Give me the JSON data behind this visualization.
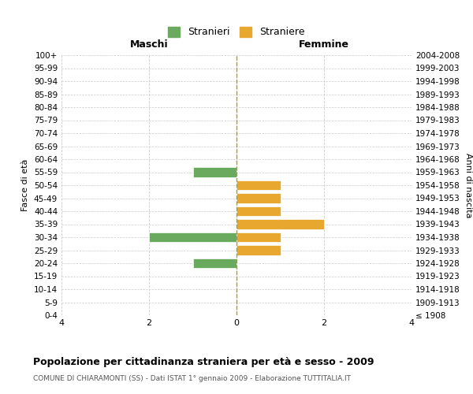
{
  "age_groups": [
    "100+",
    "95-99",
    "90-94",
    "85-89",
    "80-84",
    "75-79",
    "70-74",
    "65-69",
    "60-64",
    "55-59",
    "50-54",
    "45-49",
    "40-44",
    "35-39",
    "30-34",
    "25-29",
    "20-24",
    "15-19",
    "10-14",
    "5-9",
    "0-4"
  ],
  "birth_years": [
    "≤ 1908",
    "1909-1913",
    "1914-1918",
    "1919-1923",
    "1924-1928",
    "1929-1933",
    "1934-1938",
    "1939-1943",
    "1944-1948",
    "1949-1953",
    "1954-1958",
    "1959-1963",
    "1964-1968",
    "1969-1973",
    "1974-1978",
    "1979-1983",
    "1984-1988",
    "1989-1993",
    "1994-1998",
    "1999-2003",
    "2004-2008"
  ],
  "maschi": [
    0,
    0,
    0,
    0,
    0,
    0,
    0,
    0,
    0,
    -1,
    0,
    0,
    0,
    0,
    -2,
    0,
    -1,
    0,
    0,
    0,
    0
  ],
  "femmine": [
    0,
    0,
    0,
    0,
    0,
    0,
    0,
    0,
    0,
    0,
    1,
    1,
    1,
    2,
    1,
    1,
    0,
    0,
    0,
    0,
    0
  ],
  "color_maschi": "#6aaa5e",
  "color_femmine": "#e8a830",
  "title": "Popolazione per cittadinanza straniera per età e sesso - 2009",
  "subtitle": "COMUNE DI CHIARAMONTI (SS) - Dati ISTAT 1° gennaio 2009 - Elaborazione TUTTITALIA.IT",
  "header_left": "Maschi",
  "header_right": "Femmine",
  "ylabel_left": "Fasce di età",
  "ylabel_right": "Anni di nascita",
  "legend_maschi": "Stranieri",
  "legend_femmine": "Straniere",
  "xlim": [
    -4,
    4
  ],
  "xticks": [
    -4,
    -2,
    0,
    2,
    4
  ],
  "xticklabels": [
    "4",
    "2",
    "0",
    "2",
    "4"
  ],
  "background_color": "#ffffff",
  "grid_color": "#cccccc",
  "zeroline_color": "#999966"
}
